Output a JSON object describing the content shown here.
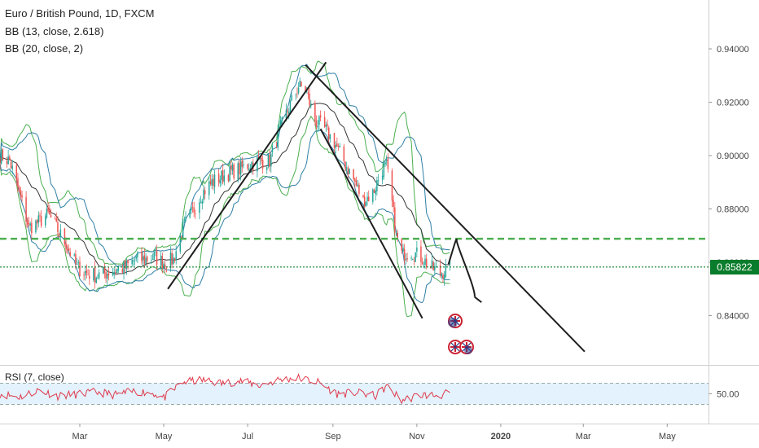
{
  "symbol": {
    "title": "Euro / British Pound, 1D, FXCM",
    "indicator_1": "BB (13, close, 2.618)",
    "indicator_2": "BB (20, close, 2)",
    "rsi_label": "RSI (7, close)"
  },
  "last_price": "0.85822",
  "colors": {
    "bull": "#26a69a",
    "bear": "#ef5350",
    "bb13": "#4caf50",
    "bb20": "#2f7fa5",
    "basis": "#000000",
    "dashed_level": "#4caf50",
    "last_price_line": "#0a7d2c",
    "rsi": "#e0394a",
    "rsi_band": "#e3f2fd",
    "trendline": "#1e1e1e"
  },
  "chart_data": [
    {
      "type": "candlestick",
      "title": "Euro / British Pound, 1D, FXCM",
      "ylim": [
        0.8265,
        0.9465
      ],
      "y_ticks": [
        "0.94000",
        "0.92000",
        "0.90000",
        "0.88000",
        "0.86000",
        "0.84000"
      ],
      "y_tick_values": [
        0.94,
        0.92,
        0.9,
        0.88,
        0.86,
        0.84
      ],
      "x_ticks": [
        "Mar",
        "May",
        "Jul",
        "Sep",
        "Nov",
        "2020",
        "Mar",
        "May"
      ],
      "x_tick_dates": [
        "2019-03-01",
        "2019-05-01",
        "2019-07-01",
        "2019-09-01",
        "2019-11-01",
        "2020-01-01",
        "2020-03-01",
        "2020-05-01"
      ],
      "xlim": [
        "2019-01-02",
        "2020-05-31"
      ],
      "last_price": 0.85822,
      "horizontal_levels": [
        {
          "value": 0.8688,
          "style": "dashed"
        },
        {
          "value": 0.85822,
          "style": "dotted"
        }
      ],
      "close_path": [
        [
          "2019-01-02",
          0.9
        ],
        [
          "2019-01-09",
          0.898
        ],
        [
          "2019-01-16",
          0.886
        ],
        [
          "2019-01-23",
          0.873
        ],
        [
          "2019-01-30",
          0.875
        ],
        [
          "2019-02-06",
          0.878
        ],
        [
          "2019-02-13",
          0.872
        ],
        [
          "2019-02-20",
          0.866
        ],
        [
          "2019-02-27",
          0.858
        ],
        [
          "2019-03-06",
          0.856
        ],
        [
          "2019-03-13",
          0.855
        ],
        [
          "2019-03-20",
          0.856
        ],
        [
          "2019-03-27",
          0.857
        ],
        [
          "2019-04-03",
          0.858
        ],
        [
          "2019-04-10",
          0.861
        ],
        [
          "2019-04-17",
          0.861
        ],
        [
          "2019-04-24",
          0.862
        ],
        [
          "2019-05-01",
          0.86
        ],
        [
          "2019-05-08",
          0.861
        ],
        [
          "2019-05-15",
          0.873
        ],
        [
          "2019-05-22",
          0.879
        ],
        [
          "2019-05-29",
          0.886
        ],
        [
          "2019-06-05",
          0.89
        ],
        [
          "2019-06-12",
          0.892
        ],
        [
          "2019-06-19",
          0.894
        ],
        [
          "2019-06-26",
          0.895
        ],
        [
          "2019-07-03",
          0.897
        ],
        [
          "2019-07-10",
          0.898
        ],
        [
          "2019-07-17",
          0.898
        ],
        [
          "2019-07-24",
          0.909
        ],
        [
          "2019-07-31",
          0.918
        ],
        [
          "2019-08-07",
          0.926
        ],
        [
          "2019-08-12",
          0.925
        ],
        [
          "2019-08-19",
          0.913
        ],
        [
          "2019-08-26",
          0.91
        ],
        [
          "2019-09-02",
          0.905
        ],
        [
          "2019-09-09",
          0.898
        ],
        [
          "2019-09-16",
          0.891
        ],
        [
          "2019-09-23",
          0.883
        ],
        [
          "2019-09-30",
          0.886
        ],
        [
          "2019-10-07",
          0.895
        ],
        [
          "2019-10-10",
          0.896
        ],
        [
          "2019-10-14",
          0.882
        ],
        [
          "2019-10-17",
          0.87
        ],
        [
          "2019-10-21",
          0.863
        ],
        [
          "2019-10-28",
          0.864
        ],
        [
          "2019-11-04",
          0.862
        ],
        [
          "2019-11-11",
          0.858
        ],
        [
          "2019-11-18",
          0.856
        ],
        [
          "2019-11-25",
          0.858
        ]
      ],
      "trendlines": [
        {
          "from": [
            "2019-05-04",
            0.85
          ],
          "to": [
            "2019-08-27",
            0.935
          ],
          "label": ""
        },
        {
          "from": [
            "2019-08-12",
            0.934
          ],
          "to": [
            "2020-03-02",
            0.8265
          ],
          "label": ""
        },
        {
          "from": [
            "2019-08-23",
            0.91
          ],
          "to": [
            "2019-11-05",
            0.839
          ],
          "label": ""
        }
      ],
      "projection_path": [
        [
          "2019-11-24",
          0.8593
        ],
        [
          "2019-11-30",
          0.868
        ],
        [
          "2019-12-08",
          0.861
        ],
        [
          "2019-12-13",
          0.847
        ],
        [
          "2019-12-18",
          0.845
        ]
      ]
    },
    {
      "type": "line",
      "title": "RSI (7, close)",
      "series": [
        {
          "name": "RSI (7, close)",
          "values_path": [
            [
              "2019-01-02",
              50
            ],
            [
              "2019-01-16",
              44
            ],
            [
              "2019-01-30",
              57
            ],
            [
              "2019-02-13",
              46
            ],
            [
              "2019-02-27",
              49
            ],
            [
              "2019-03-13",
              53
            ],
            [
              "2019-03-27",
              48
            ],
            [
              "2019-04-10",
              55
            ],
            [
              "2019-04-24",
              51
            ],
            [
              "2019-05-01",
              42
            ],
            [
              "2019-05-15",
              72
            ],
            [
              "2019-05-29",
              76
            ],
            [
              "2019-06-12",
              70
            ],
            [
              "2019-06-26",
              74
            ],
            [
              "2019-07-10",
              66
            ],
            [
              "2019-07-24",
              77
            ],
            [
              "2019-08-07",
              80
            ],
            [
              "2019-08-21",
              72
            ],
            [
              "2019-09-04",
              50
            ],
            [
              "2019-09-18",
              52
            ],
            [
              "2019-10-02",
              46
            ],
            [
              "2019-10-10",
              64
            ],
            [
              "2019-10-21",
              38
            ],
            [
              "2019-11-04",
              48
            ],
            [
              "2019-11-18",
              47
            ],
            [
              "2019-11-25",
              52
            ]
          ]
        }
      ],
      "ylim": [
        0,
        100
      ],
      "y_ticks": [
        "50.00"
      ],
      "bands": [
        30,
        70
      ]
    }
  ]
}
